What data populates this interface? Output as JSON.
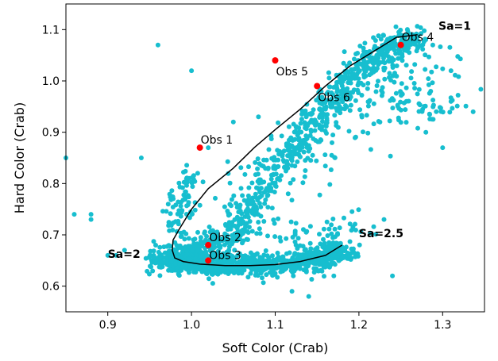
{
  "chart_data": {
    "type": "scatter",
    "xlabel": "Soft Color (Crab)",
    "ylabel": "Hard Color (Crab)",
    "xlim": [
      0.85,
      1.35
    ],
    "ylim": [
      0.55,
      1.15
    ],
    "xticks": [
      "0.9",
      "1.0",
      "1.1",
      "1.2",
      "1.3"
    ],
    "yticks": [
      "0.6",
      "0.7",
      "0.8",
      "0.9",
      "1.0",
      "1.1"
    ],
    "grid": false,
    "colors": {
      "scatter": "#17becf",
      "observations": "#ff0000",
      "track": "#000000"
    },
    "scatter_clusters": [
      {
        "path": [
          [
            0.975,
            0.655
          ],
          [
            1.01,
            0.665
          ],
          [
            1.05,
            0.7
          ],
          [
            1.08,
            0.78
          ],
          [
            1.12,
            0.87
          ],
          [
            1.16,
            0.95
          ],
          [
            1.2,
            1.02
          ],
          [
            1.24,
            1.07
          ],
          [
            1.27,
            1.08
          ]
        ],
        "count": 900,
        "spread": 0.012
      },
      {
        "path": [
          [
            0.96,
            0.65
          ],
          [
            1.0,
            0.645
          ],
          [
            1.05,
            0.64
          ],
          [
            1.1,
            0.642
          ],
          [
            1.15,
            0.652
          ],
          [
            1.18,
            0.67
          ]
        ],
        "count": 900,
        "spread": 0.011
      },
      {
        "path": [
          [
            1.05,
            0.75
          ],
          [
            1.1,
            0.82
          ],
          [
            1.15,
            0.88
          ],
          [
            1.2,
            0.95
          ],
          [
            1.25,
            1.0
          ],
          [
            1.3,
            1.02
          ]
        ],
        "count": 140,
        "spread": 0.03
      },
      {
        "path": [
          [
            0.985,
            0.68
          ],
          [
            0.985,
            0.74
          ],
          [
            0.99,
            0.79
          ],
          [
            1.0,
            0.82
          ]
        ],
        "count": 80,
        "spread": 0.008
      },
      {
        "path": [
          [
            1.05,
            0.71
          ],
          [
            1.1,
            0.7
          ],
          [
            1.15,
            0.7
          ],
          [
            1.2,
            0.72
          ]
        ],
        "count": 70,
        "spread": 0.015
      },
      {
        "path": [
          [
            1.21,
            1.04
          ],
          [
            1.25,
            0.96
          ],
          [
            1.28,
            0.92
          ],
          [
            1.31,
            0.98
          ]
        ],
        "count": 60,
        "spread": 0.02
      }
    ],
    "scatter_extra": [
      [
        0.85,
        0.85
      ],
      [
        0.86,
        0.74
      ],
      [
        0.88,
        0.73
      ],
      [
        0.88,
        0.74
      ],
      [
        0.9,
        0.66
      ],
      [
        0.91,
        0.66
      ],
      [
        0.92,
        0.67
      ],
      [
        0.94,
        0.85
      ],
      [
        0.96,
        1.07
      ],
      [
        1.0,
        1.02
      ],
      [
        1.02,
        0.87
      ],
      [
        1.05,
        0.92
      ],
      [
        1.08,
        0.93
      ],
      [
        1.12,
        0.59
      ],
      [
        1.14,
        0.58
      ],
      [
        1.17,
        0.62
      ],
      [
        1.23,
        0.73
      ],
      [
        1.24,
        0.62
      ],
      [
        1.28,
        0.9
      ],
      [
        1.3,
        0.87
      ],
      [
        1.31,
        0.96
      ],
      [
        1.31,
        1.02
      ]
    ],
    "track": {
      "x": [
        1.27,
        1.245,
        1.22,
        1.19,
        1.16,
        1.13,
        1.1,
        1.075,
        1.05,
        1.02,
        1.0,
        0.985,
        0.978,
        0.977,
        0.98,
        0.99,
        1.01,
        1.04,
        1.07,
        1.1,
        1.13,
        1.16,
        1.18
      ],
      "y": [
        1.09,
        1.085,
        1.06,
        1.03,
        0.99,
        0.945,
        0.905,
        0.87,
        0.83,
        0.79,
        0.75,
        0.71,
        0.69,
        0.67,
        0.655,
        0.648,
        0.643,
        0.64,
        0.64,
        0.642,
        0.648,
        0.66,
        0.68
      ]
    },
    "observations": [
      {
        "label": "Obs 1",
        "x": 1.01,
        "y": 0.87
      },
      {
        "label": "Obs 2",
        "x": 1.02,
        "y": 0.68
      },
      {
        "label": "Obs 3",
        "x": 1.02,
        "y": 0.65
      },
      {
        "label": "Obs 4",
        "x": 1.25,
        "y": 1.07
      },
      {
        "label": "Obs 5",
        "x": 1.1,
        "y": 1.04
      },
      {
        "label": "Obs 6",
        "x": 1.15,
        "y": 0.99
      }
    ],
    "annotations": [
      {
        "label": "Sa=1",
        "x": 1.295,
        "y": 1.1
      },
      {
        "label": "Sa=2.5",
        "x": 1.2,
        "y": 0.695
      },
      {
        "label": "Sa=2",
        "x": 0.9,
        "y": 0.655
      }
    ]
  }
}
